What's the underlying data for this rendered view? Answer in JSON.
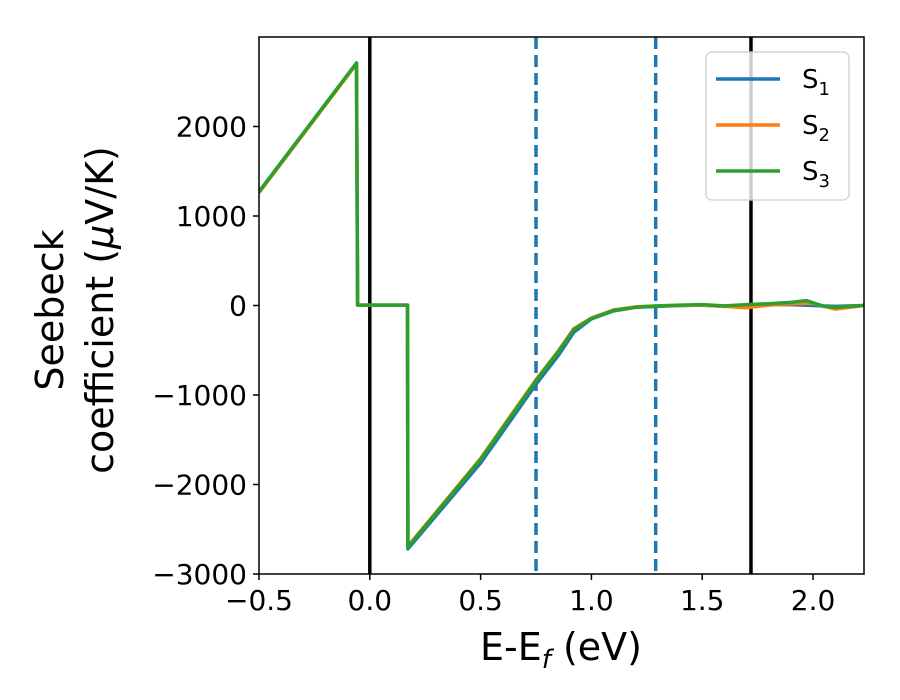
{
  "chart_data": {
    "type": "line",
    "title": "",
    "xlabel": "E-E",
    "xlabel_sub": "f",
    "xlabel_unit": " (eV)",
    "ylabel_line1": "Seebeck",
    "ylabel_line2_prefix": "coefficient  (",
    "ylabel_mu": "μ",
    "ylabel_line2_suffix": "V/K)",
    "xlim": [
      -0.5,
      2.23
    ],
    "ylim": [
      -3000,
      3000
    ],
    "x_ticks": [
      -0.5,
      0.0,
      0.5,
      1.0,
      1.5,
      2.0
    ],
    "x_tick_labels": [
      "−0.5",
      "0.0",
      "0.5",
      "1.0",
      "1.5",
      "2.0"
    ],
    "y_ticks": [
      -3000,
      -2000,
      -1000,
      0,
      1000,
      2000
    ],
    "y_tick_labels": [
      "−3000",
      "−2000",
      "−1000",
      "0",
      "1000",
      "2000"
    ],
    "grid": false,
    "legend_placement": "top-right",
    "vertical_lines": [
      {
        "x": 0.0,
        "style": "solid",
        "color": "#000000"
      },
      {
        "x": 0.75,
        "style": "dashed",
        "color": "#1f77b4"
      },
      {
        "x": 1.29,
        "style": "dashed",
        "color": "#1f77b4"
      },
      {
        "x": 1.72,
        "style": "solid",
        "color": "#000000"
      }
    ],
    "series": [
      {
        "name": "S",
        "sub": "1",
        "color": "#1f77b4",
        "x": [
          -0.5,
          -0.06,
          -0.055,
          0.17,
          0.172,
          0.5,
          0.75,
          0.85,
          0.92,
          1.0,
          1.1,
          1.2,
          1.3,
          1.4,
          1.5,
          1.6,
          1.7,
          1.8,
          1.9,
          2.0,
          2.1,
          2.23
        ],
        "y": [
          1270,
          2710,
          5,
          5,
          -2720,
          -1760,
          -880,
          -560,
          -300,
          -150,
          -60,
          -20,
          -10,
          0,
          5,
          -10,
          5,
          10,
          10,
          0,
          -10,
          0
        ]
      },
      {
        "name": "S",
        "sub": "2",
        "color": "#ff7f0e",
        "x": [
          -0.5,
          -0.06,
          -0.055,
          0.17,
          0.172,
          0.5,
          0.75,
          0.85,
          0.92,
          1.0,
          1.1,
          1.2,
          1.3,
          1.4,
          1.5,
          1.6,
          1.7,
          1.8,
          1.9,
          2.0,
          2.1,
          2.23
        ],
        "y": [
          1260,
          2700,
          5,
          5,
          -2690,
          -1710,
          -830,
          -510,
          -260,
          -140,
          -50,
          -15,
          -5,
          0,
          5,
          -10,
          -25,
          5,
          20,
          25,
          -40,
          0
        ]
      },
      {
        "name": "S",
        "sub": "3",
        "color": "#2ca02c",
        "x": [
          -0.5,
          -0.06,
          -0.055,
          0.17,
          0.172,
          0.5,
          0.75,
          0.85,
          0.92,
          1.0,
          1.1,
          1.2,
          1.3,
          1.4,
          1.5,
          1.6,
          1.7,
          1.8,
          1.9,
          1.97,
          2.05,
          2.1,
          2.23
        ],
        "y": [
          1270,
          2710,
          5,
          5,
          -2700,
          -1720,
          -840,
          -520,
          -270,
          -145,
          -55,
          -20,
          -5,
          5,
          10,
          -5,
          10,
          20,
          35,
          55,
          -10,
          -20,
          0
        ]
      }
    ]
  }
}
